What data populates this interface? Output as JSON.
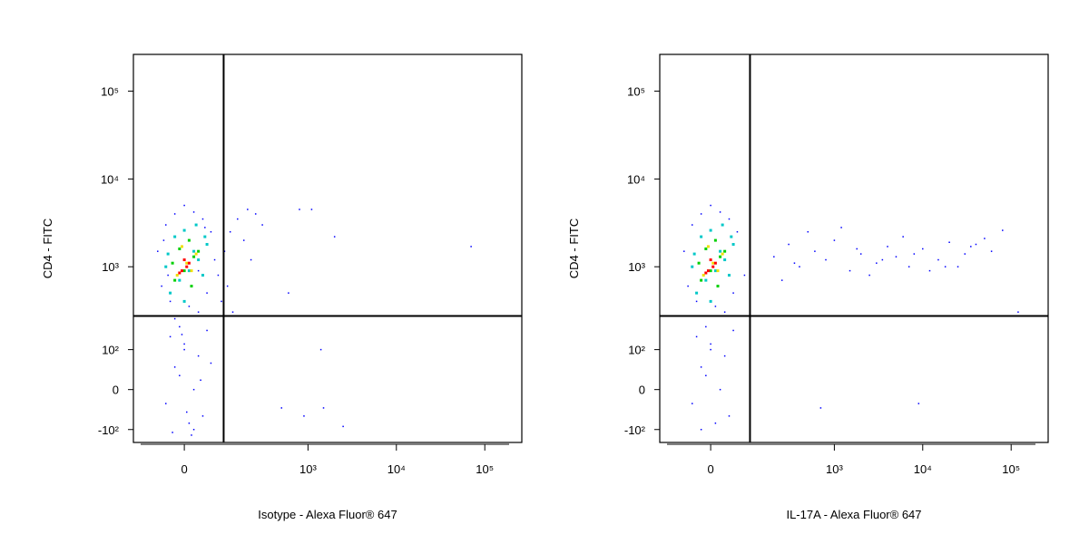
{
  "chart_data": [
    {
      "type": "scatter",
      "x_label": "Isotype - Alexa Fluor® 647",
      "y_label": "CD4 - FITC",
      "scale": "biexponential",
      "xlim": [
        -140,
        262144
      ],
      "ylim": [
        -150,
        262144
      ],
      "xticks": [
        0,
        {
          "value": 1000,
          "label": "10³"
        },
        {
          "value": 10000,
          "label": "10⁴"
        },
        {
          "value": 100000,
          "label": "10⁵"
        }
      ],
      "yticks": [
        {
          "value": -100,
          "label": "-10²"
        },
        0,
        {
          "value": 100,
          "label": "10²"
        },
        {
          "value": 1000,
          "label": "10³"
        },
        {
          "value": 10000,
          "label": "10⁴"
        },
        {
          "value": 100000,
          "label": "10⁵"
        }
      ],
      "gates": {
        "x": 97,
        "y": 270
      },
      "series": [
        {
          "color": "#0000ff",
          "size": 1.5,
          "x": [
            -60,
            -40,
            -20,
            0,
            20,
            40,
            60,
            -50,
            -30,
            10,
            30,
            50,
            -10,
            80,
            100,
            120,
            150,
            200,
            250,
            300,
            -30,
            0,
            30,
            -20,
            20,
            -40,
            40,
            10,
            -10,
            60,
            0,
            20,
            -20,
            50,
            90,
            130,
            180,
            220,
            800,
            1100,
            2000,
            70000,
            600,
            900,
            1500,
            500,
            1400,
            2500,
            -20,
            30,
            -45,
            -35,
            45,
            70,
            110,
            -25,
            15,
            35,
            5,
            -5
          ],
          "y": [
            1500,
            3000,
            4000,
            5000,
            4200,
            3500,
            2500,
            600,
            400,
            350,
            300,
            500,
            200,
            800,
            1500,
            2500,
            3500,
            4500,
            4000,
            3000,
            150,
            100,
            80,
            50,
            0,
            -30,
            -60,
            -80,
            30,
            60,
            120,
            -100,
            250,
            180,
            400,
            300,
            2000,
            1200,
            4500,
            4500,
            2200,
            1700,
            500,
            -60,
            -40,
            -40,
            100,
            -90,
            700,
            900,
            2000,
            800,
            2800,
            1200,
            600,
            -110,
            -120,
            20,
            -50,
            160
          ]
        },
        {
          "color": "#00c8c8",
          "size": 3,
          "x": [
            -30,
            -10,
            10,
            30,
            50,
            -20,
            0,
            20,
            40,
            -40,
            0,
            25,
            -35,
            45
          ],
          "y": [
            500,
            700,
            900,
            1200,
            1800,
            2200,
            2600,
            1500,
            800,
            1000,
            400,
            3000,
            1400,
            2200
          ]
        },
        {
          "color": "#00d000",
          "size": 3,
          "x": [
            -20,
            0,
            20,
            -10,
            10,
            30,
            -25,
            15
          ],
          "y": [
            700,
            900,
            1300,
            1600,
            2000,
            1500,
            1100,
            600
          ]
        },
        {
          "color": "#f0e000",
          "size": 3,
          "x": [
            -15,
            5,
            25,
            -5,
            15
          ],
          "y": [
            800,
            1100,
            1400,
            1700,
            900
          ]
        },
        {
          "color": "#ff0000",
          "size": 3,
          "x": [
            -5,
            5,
            0,
            10,
            -10
          ],
          "y": [
            900,
            1000,
            1200,
            1100,
            850
          ]
        }
      ]
    },
    {
      "type": "scatter",
      "x_label": "IL-17A - Alexa Fluor® 647",
      "y_label": "CD4 - FITC",
      "scale": "biexponential",
      "xlim": [
        -140,
        262144
      ],
      "ylim": [
        -150,
        262144
      ],
      "xticks": [
        0,
        {
          "value": 1000,
          "label": "10³"
        },
        {
          "value": 10000,
          "label": "10⁴"
        },
        {
          "value": 100000,
          "label": "10⁵"
        }
      ],
      "yticks": [
        {
          "value": -100,
          "label": "-10²"
        },
        0,
        {
          "value": 100,
          "label": "10²"
        },
        {
          "value": 1000,
          "label": "10³"
        },
        {
          "value": 10000,
          "label": "10⁴"
        },
        {
          "value": 100000,
          "label": "10⁵"
        }
      ],
      "gates": {
        "x": 97,
        "y": 270
      },
      "series": [
        {
          "color": "#0000ff",
          "size": 1.5,
          "x": [
            -60,
            -40,
            -20,
            0,
            20,
            40,
            60,
            -50,
            -30,
            10,
            30,
            50,
            -10,
            80,
            -30,
            0,
            30,
            -20,
            20,
            -40,
            40,
            10,
            -10,
            0,
            -20,
            50,
            200,
            300,
            400,
            600,
            800,
            1000,
            1500,
            2000,
            3000,
            4000,
            5000,
            7000,
            10000,
            15000,
            20000,
            30000,
            40000,
            60000,
            80000,
            250,
            500,
            1200,
            2500,
            6000,
            12000,
            25000,
            50000,
            120000,
            700,
            9000,
            350,
            1800,
            3500,
            8000,
            18000,
            35000
          ],
          "y": [
            1500,
            3000,
            4000,
            5000,
            4200,
            3500,
            2500,
            600,
            400,
            350,
            300,
            500,
            200,
            800,
            150,
            100,
            80,
            50,
            0,
            -30,
            -60,
            -80,
            30,
            120,
            -100,
            180,
            1300,
            1800,
            1000,
            1500,
            1200,
            2000,
            900,
            1400,
            1100,
            1700,
            1300,
            1000,
            1600,
            1200,
            1900,
            1400,
            1800,
            1500,
            2600,
            700,
            2500,
            2800,
            800,
            2200,
            900,
            1000,
            2100,
            300,
            -40,
            -30,
            1100,
            1600,
            1200,
            1400,
            1000,
            1700
          ]
        },
        {
          "color": "#00c8c8",
          "size": 3,
          "x": [
            -30,
            -10,
            10,
            30,
            50,
            -20,
            0,
            20,
            40,
            -40,
            0,
            25,
            -35,
            45
          ],
          "y": [
            500,
            700,
            900,
            1200,
            1800,
            2200,
            2600,
            1500,
            800,
            1000,
            400,
            3000,
            1400,
            2200
          ]
        },
        {
          "color": "#00d000",
          "size": 3,
          "x": [
            -20,
            0,
            20,
            -10,
            10,
            30,
            -25,
            15
          ],
          "y": [
            700,
            900,
            1300,
            1600,
            2000,
            1500,
            1100,
            600
          ]
        },
        {
          "color": "#f0e000",
          "size": 3,
          "x": [
            -15,
            5,
            25,
            -5,
            15
          ],
          "y": [
            800,
            1100,
            1400,
            1700,
            900
          ]
        },
        {
          "color": "#ff0000",
          "size": 3,
          "x": [
            -5,
            5,
            0,
            10,
            -10
          ],
          "y": [
            900,
            1000,
            1200,
            1100,
            850
          ]
        }
      ]
    }
  ]
}
